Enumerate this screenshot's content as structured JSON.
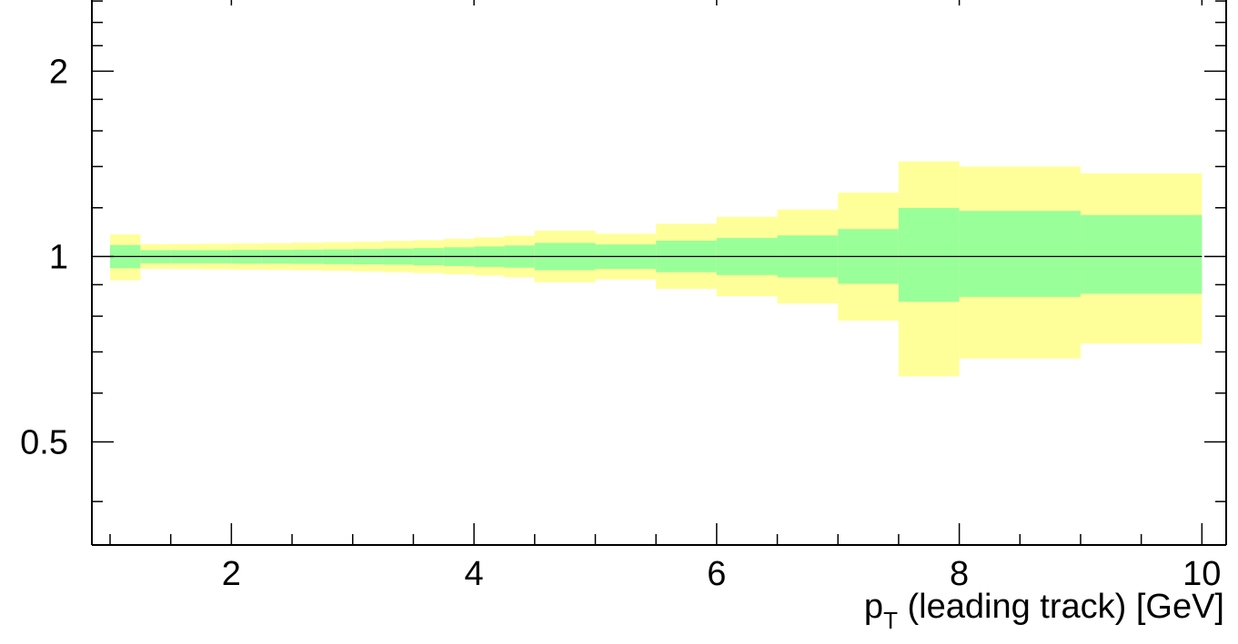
{
  "chart_data": {
    "type": "area",
    "title": "",
    "xlabel": {
      "main": "p",
      "subscript": "T",
      "rest": " (leading track) [GeV]"
    },
    "ylabel": "",
    "xlim": [
      0.85,
      10.2
    ],
    "ylim": [
      0.34,
      2.7
    ],
    "y_scale": "log",
    "x_ticks": [
      {
        "value": 2,
        "label": "2"
      },
      {
        "value": 4,
        "label": "4"
      },
      {
        "value": 6,
        "label": "6"
      },
      {
        "value": 8,
        "label": "8"
      },
      {
        "value": 10,
        "label": "10"
      }
    ],
    "y_ticks": [
      {
        "value": 0.5,
        "label": "0.5"
      },
      {
        "value": 1,
        "label": "1"
      },
      {
        "value": 2,
        "label": "2"
      }
    ],
    "reference_line": 1,
    "bins": [
      {
        "x0": 1.0,
        "x1": 1.25,
        "outer": [
          0.915,
          1.086
        ],
        "inner": [
          0.957,
          1.044
        ]
      },
      {
        "x0": 1.25,
        "x1": 1.5,
        "outer": [
          0.955,
          1.047
        ],
        "inner": [
          0.975,
          1.024
        ]
      },
      {
        "x0": 1.5,
        "x1": 1.75,
        "outer": [
          0.954,
          1.048
        ],
        "inner": [
          0.975,
          1.024
        ]
      },
      {
        "x0": 1.75,
        "x1": 2.0,
        "outer": [
          0.953,
          1.049
        ],
        "inner": [
          0.975,
          1.024
        ]
      },
      {
        "x0": 2.0,
        "x1": 2.25,
        "outer": [
          0.952,
          1.05
        ],
        "inner": [
          0.974,
          1.025
        ]
      },
      {
        "x0": 2.25,
        "x1": 2.5,
        "outer": [
          0.951,
          1.051
        ],
        "inner": [
          0.974,
          1.025
        ]
      },
      {
        "x0": 2.5,
        "x1": 2.75,
        "outer": [
          0.95,
          1.053
        ],
        "inner": [
          0.973,
          1.026
        ]
      },
      {
        "x0": 2.75,
        "x1": 3.0,
        "outer": [
          0.948,
          1.055
        ],
        "inner": [
          0.972,
          1.027
        ]
      },
      {
        "x0": 3.0,
        "x1": 3.25,
        "outer": [
          0.946,
          1.057
        ],
        "inner": [
          0.971,
          1.028
        ]
      },
      {
        "x0": 3.25,
        "x1": 3.5,
        "outer": [
          0.943,
          1.06
        ],
        "inner": [
          0.97,
          1.03
        ]
      },
      {
        "x0": 3.5,
        "x1": 3.75,
        "outer": [
          0.94,
          1.063
        ],
        "inner": [
          0.968,
          1.032
        ]
      },
      {
        "x0": 3.75,
        "x1": 4.0,
        "outer": [
          0.936,
          1.068
        ],
        "inner": [
          0.965,
          1.035
        ]
      },
      {
        "x0": 4.0,
        "x1": 4.25,
        "outer": [
          0.931,
          1.074
        ],
        "inner": [
          0.962,
          1.038
        ]
      },
      {
        "x0": 4.25,
        "x1": 4.5,
        "outer": [
          0.925,
          1.081
        ],
        "inner": [
          0.959,
          1.042
        ]
      },
      {
        "x0": 4.5,
        "x1": 5.0,
        "outer": [
          0.908,
          1.101
        ],
        "inner": [
          0.95,
          1.052
        ]
      },
      {
        "x0": 5.0,
        "x1": 5.5,
        "outer": [
          0.918,
          1.089
        ],
        "inner": [
          0.955,
          1.046
        ]
      },
      {
        "x0": 5.5,
        "x1": 6.0,
        "outer": [
          0.886,
          1.13
        ],
        "inner": [
          0.943,
          1.061
        ]
      },
      {
        "x0": 6.0,
        "x1": 6.5,
        "outer": [
          0.862,
          1.16
        ],
        "inner": [
          0.933,
          1.072
        ]
      },
      {
        "x0": 6.5,
        "x1": 7.0,
        "outer": [
          0.839,
          1.192
        ],
        "inner": [
          0.925,
          1.082
        ]
      },
      {
        "x0": 7.0,
        "x1": 7.5,
        "outer": [
          0.787,
          1.27
        ],
        "inner": [
          0.903,
          1.108
        ]
      },
      {
        "x0": 7.5,
        "x1": 8.0,
        "outer": [
          0.639,
          1.427
        ],
        "inner": [
          0.844,
          1.199
        ]
      },
      {
        "x0": 8.0,
        "x1": 9.0,
        "outer": [
          0.683,
          1.4
        ],
        "inner": [
          0.86,
          1.186
        ]
      },
      {
        "x0": 9.0,
        "x1": 10.0,
        "outer": [
          0.722,
          1.365
        ],
        "inner": [
          0.87,
          1.168
        ]
      }
    ],
    "colors": {
      "outer_band": "#ffff99",
      "inner_band": "#99ff99",
      "reference_line": "#000000",
      "axes": "#000000"
    },
    "grid": false,
    "legend": "none"
  }
}
